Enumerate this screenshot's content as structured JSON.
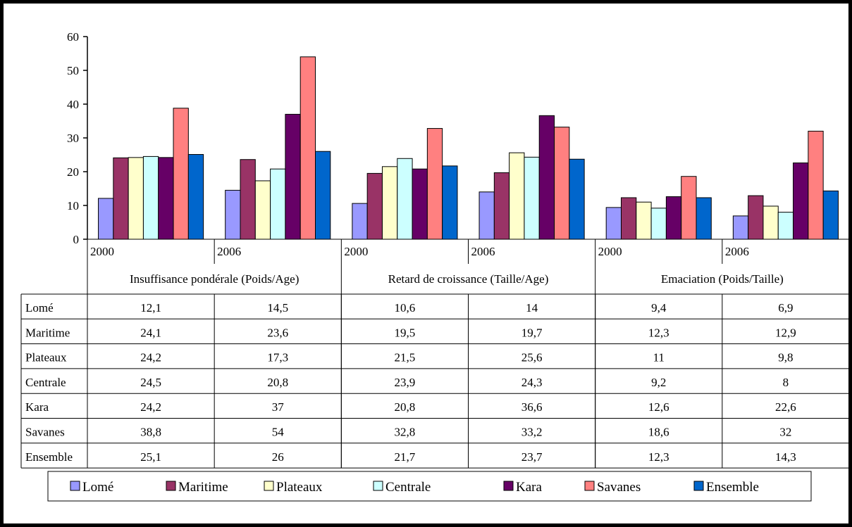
{
  "chart_data": {
    "type": "bar",
    "groups": [
      {
        "name": "Insuffisance pondérale (Poids/Age)",
        "years": [
          "2000",
          "2006"
        ]
      },
      {
        "name": "Retard de croissance (Taille/Age)",
        "years": [
          "2000",
          "2006"
        ]
      },
      {
        "name": "Emaciation (Poids/Taille)",
        "years": [
          "2000",
          "2006"
        ]
      }
    ],
    "categories": [
      "2000",
      "2006",
      "2000",
      "2006",
      "2000",
      "2006"
    ],
    "series": [
      {
        "name": "Lomé",
        "color": "#9999FF",
        "values": [
          "12,1",
          "14,5",
          "10,6",
          "14",
          "9,4",
          "6,9"
        ]
      },
      {
        "name": "Maritime",
        "color": "#993366",
        "values": [
          "24,1",
          "23,6",
          "19,5",
          "19,7",
          "12,3",
          "12,9"
        ]
      },
      {
        "name": "Plateaux",
        "color": "#FFFFCC",
        "values": [
          "24,2",
          "17,3",
          "21,5",
          "25,6",
          "11",
          "9,8"
        ]
      },
      {
        "name": "Centrale",
        "color": "#CCFFFF",
        "values": [
          "24,5",
          "20,8",
          "23,9",
          "24,3",
          "9,2",
          "8"
        ]
      },
      {
        "name": "Kara",
        "color": "#660066",
        "values": [
          "24,2",
          "37",
          "20,8",
          "36,6",
          "12,6",
          "22,6"
        ]
      },
      {
        "name": "Savanes",
        "color": "#FF8080",
        "values": [
          "38,8",
          "54",
          "32,8",
          "33,2",
          "18,6",
          "32"
        ]
      },
      {
        "name": "Ensemble",
        "color": "#0066CC",
        "values": [
          "25,1",
          "26",
          "21,7",
          "23,7",
          "12,3",
          "14,3"
        ]
      }
    ],
    "yticks": [
      "0",
      "10",
      "20",
      "30",
      "40",
      "50",
      "60"
    ],
    "ylim": [
      0,
      60
    ],
    "grid": false,
    "legend": "bottom",
    "data_table": true
  }
}
